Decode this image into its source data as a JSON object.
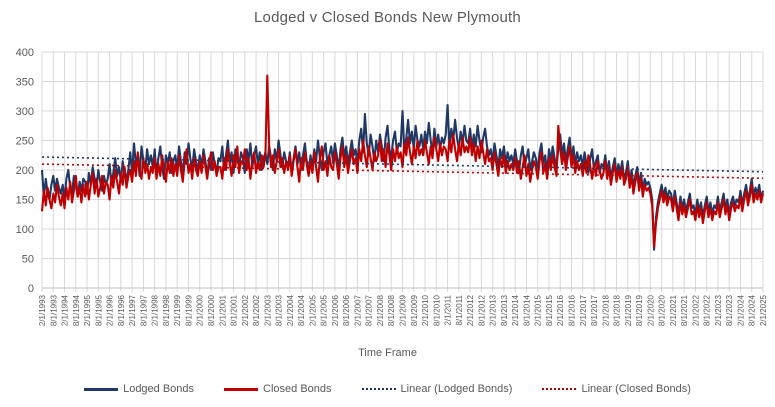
{
  "chart_data": {
    "type": "line",
    "title": "Lodged v Closed Bonds New Plymouth",
    "xlabel": "Time Frame",
    "ylabel": "",
    "ylim": [
      0,
      400
    ],
    "y_ticks": [
      0,
      50,
      100,
      150,
      200,
      250,
      300,
      350,
      400
    ],
    "grid": true,
    "legend_position": "bottom",
    "x_frequency": "monthly",
    "x_range": [
      "2/1/1993",
      "2/1/2025"
    ],
    "x_tick_labels": [
      "2/1/1993",
      "8/1/1993",
      "2/1/1994",
      "8/1/1994",
      "2/1/1995",
      "8/1/1995",
      "2/1/1996",
      "8/1/1996",
      "2/1/1997",
      "8/1/1997",
      "2/1/1998",
      "8/1/1998",
      "2/1/1999",
      "8/1/1999",
      "2/1/2000",
      "8/1/2000",
      "2/1/2001",
      "8/1/2001",
      "2/1/2002",
      "8/1/2002",
      "2/1/2003",
      "8/1/2003",
      "2/1/2004",
      "8/1/2004",
      "2/1/2005",
      "8/1/2005",
      "2/1/2006",
      "8/1/2006",
      "2/1/2007",
      "8/1/2007",
      "2/1/2008",
      "8/1/2008",
      "2/1/2009",
      "8/1/2009",
      "2/1/2010",
      "8/1/2010",
      "2/1/2011",
      "8/1/2011",
      "2/1/2012",
      "8/1/2012",
      "2/1/2013",
      "8/1/2013",
      "2/1/2014",
      "8/1/2014",
      "2/1/2015",
      "8/1/2015",
      "2/1/2016",
      "8/1/2016",
      "2/1/2017",
      "8/1/2017",
      "2/1/2018",
      "8/1/2018",
      "2/1/2019",
      "8/1/2019",
      "2/1/2020",
      "8/1/2020",
      "2/1/2021",
      "8/1/2021",
      "2/1/2022",
      "8/1/2022",
      "2/1/2023",
      "8/1/2023",
      "2/1/2024",
      "8/1/2024",
      "2/1/2025"
    ],
    "legend": [
      {
        "label": "Lodged Bonds",
        "color": "#1F3864",
        "style": "solid"
      },
      {
        "label": "Closed Bonds",
        "color": "#C00000",
        "style": "solid"
      },
      {
        "label": "Linear (Lodged Bonds)",
        "color": "#1F3864",
        "style": "dotted"
      },
      {
        "label": "Linear (Closed Bonds)",
        "color": "#C00000",
        "style": "dotted"
      }
    ],
    "series": [
      {
        "name": "Lodged Bonds",
        "color": "#1F3864",
        "values": [
          200,
          155,
          185,
          160,
          150,
          175,
          190,
          165,
          185,
          170,
          160,
          175,
          150,
          185,
          200,
          170,
          160,
          190,
          175,
          155,
          180,
          165,
          185,
          180,
          160,
          195,
          175,
          205,
          185,
          170,
          200,
          180,
          165,
          190,
          175,
          185,
          210,
          175,
          195,
          220,
          190,
          205,
          180,
          215,
          195,
          185,
          200,
          230,
          195,
          245,
          210,
          225,
          190,
          240,
          215,
          200,
          235,
          210,
          225,
          205,
          235,
          190,
          220,
          240,
          205,
          185,
          225,
          210,
          230,
          195,
          215,
          225,
          200,
          240,
          215,
          195,
          230,
          210,
          245,
          220,
          200,
          235,
          215,
          195,
          225,
          205,
          235,
          215,
          190,
          220,
          200,
          230,
          210,
          195,
          220,
          215,
          240,
          200,
          225,
          250,
          210,
          230,
          195,
          235,
          220,
          205,
          230,
          220,
          195,
          235,
          215,
          245,
          205,
          225,
          240,
          210,
          230,
          200,
          220,
          230,
          210,
          240,
          220,
          200,
          235,
          215,
          250,
          225,
          205,
          230,
          215,
          205,
          230,
          195,
          220,
          240,
          210,
          230,
          200,
          225,
          245,
          215,
          195,
          225,
          205,
          235,
          215,
          250,
          220,
          200,
          230,
          245,
          210,
          225,
          240,
          215,
          245,
          225,
          200,
          235,
          255,
          220,
          240,
          210,
          230,
          250,
          225,
          235,
          210,
          250,
          270,
          230,
          295,
          245,
          225,
          260,
          240,
          215,
          250,
          230,
          260,
          240,
          215,
          255,
          275,
          235,
          220,
          250,
          265,
          230,
          245,
          240,
          300,
          230,
          255,
          285,
          245,
          265,
          235,
          275,
          250,
          240,
          260,
          235,
          265,
          245,
          280,
          250,
          230,
          270,
          240,
          260,
          235,
          255,
          245,
          260,
          310,
          240,
          270,
          250,
          285,
          255,
          235,
          265,
          245,
          275,
          250,
          245,
          270,
          235,
          260,
          240,
          275,
          250,
          230,
          255,
          270,
          240,
          225,
          235,
          215,
          245,
          225,
          205,
          235,
          220,
          240,
          210,
          230,
          215,
          225,
          210,
          235,
          215,
          195,
          225,
          240,
          205,
          220,
          235,
          200,
          215,
          230,
          220,
          200,
          230,
          245,
          210,
          225,
          195,
          235,
          215,
          240,
          220,
          205,
          235,
          260,
          225,
          245,
          215,
          235,
          255,
          220,
          240,
          210,
          230,
          215,
          225,
          205,
          230,
          210,
          195,
          220,
          235,
          200,
          215,
          225,
          195,
          210,
          205,
          225,
          195,
          215,
          185,
          205,
          220,
          190,
          210,
          195,
          215,
          185,
          195,
          215,
          180,
          200,
          170,
          190,
          205,
          175,
          195,
          165,
          185,
          175,
          180,
          170,
          150,
          65,
          120,
          145,
          160,
          175,
          155,
          170,
          150,
          165,
          160,
          140,
          165,
          145,
          125,
          155,
          135,
          150,
          130,
          145,
          160,
          135,
          140,
          125,
          150,
          130,
          145,
          120,
          140,
          155,
          130,
          145,
          125,
          140,
          135,
          155,
          130,
          145,
          160,
          135,
          150,
          125,
          145,
          155,
          140,
          150,
          145,
          165,
          140,
          160,
          175,
          150,
          165,
          185,
          155,
          170,
          160,
          175,
          150,
          165
        ]
      },
      {
        "name": "Closed Bonds",
        "color": "#C00000",
        "values": [
          130,
          165,
          140,
          170,
          150,
          135,
          160,
          145,
          175,
          155,
          140,
          160,
          135,
          170,
          150,
          180,
          145,
          165,
          190,
          155,
          170,
          145,
          175,
          155,
          180,
          150,
          175,
          195,
          160,
          185,
          155,
          170,
          190,
          160,
          180,
          175,
          150,
          190,
          170,
          200,
          180,
          160,
          195,
          175,
          205,
          170,
          190,
          200,
          180,
          215,
          190,
          230,
          200,
          185,
          220,
          195,
          210,
          185,
          205,
          195,
          220,
          185,
          210,
          190,
          225,
          200,
          180,
          215,
          195,
          220,
          190,
          210,
          190,
          225,
          200,
          180,
          215,
          235,
          195,
          210,
          185,
          220,
          200,
          190,
          215,
          195,
          225,
          205,
          185,
          210,
          230,
          200,
          215,
          190,
          205,
          205,
          185,
          220,
          200,
          235,
          210,
          190,
          225,
          205,
          240,
          195,
          215,
          210,
          235,
          200,
          220,
          185,
          215,
          230,
          195,
          215,
          200,
          225,
          205,
          225,
          360,
          240,
          205,
          225,
          195,
          215,
          235,
          205,
          220,
          195,
          215,
          200,
          225,
          190,
          215,
          235,
          205,
          180,
          220,
          200,
          230,
          210,
          190,
          215,
          195,
          230,
          205,
          180,
          220,
          240,
          200,
          215,
          190,
          225,
          205,
          200,
          230,
          210,
          185,
          220,
          240,
          205,
          225,
          195,
          215,
          235,
          210,
          220,
          195,
          235,
          215,
          250,
          225,
          205,
          240,
          220,
          200,
          230,
          215,
          225,
          250,
          215,
          235,
          205,
          245,
          225,
          200,
          235,
          215,
          240,
          220,
          230,
          205,
          245,
          225,
          255,
          230,
          210,
          240,
          220,
          250,
          225,
          235,
          225,
          250,
          230,
          210,
          240,
          220,
          255,
          235,
          215,
          245,
          225,
          240,
          235,
          215,
          250,
          230,
          260,
          235,
          215,
          245,
          225,
          255,
          230,
          240,
          230,
          255,
          225,
          245,
          215,
          240,
          220,
          250,
          230,
          210,
          235,
          215,
          220,
          200,
          230,
          210,
          190,
          220,
          205,
          225,
          195,
          215,
          200,
          210,
          200,
          220,
          195,
          215,
          185,
          205,
          225,
          190,
          210,
          180,
          200,
          215,
          205,
          185,
          215,
          230,
          195,
          210,
          185,
          220,
          200,
          225,
          205,
          190,
          275,
          235,
          210,
          230,
          200,
          220,
          240,
          205,
          225,
          195,
          215,
          200,
          210,
          190,
          215,
          195,
          225,
          205,
          185,
          210,
          190,
          215,
          200,
          185,
          195,
          215,
          185,
          205,
          175,
          195,
          210,
          180,
          200,
          185,
          205,
          175,
          185,
          205,
          170,
          190,
          160,
          180,
          195,
          165,
          185,
          155,
          175,
          165,
          170,
          160,
          140,
          70,
          110,
          135,
          150,
          165,
          145,
          160,
          140,
          155,
          150,
          130,
          155,
          135,
          115,
          145,
          125,
          140,
          120,
          135,
          150,
          125,
          130,
          115,
          140,
          120,
          135,
          110,
          130,
          145,
          120,
          135,
          115,
          130,
          125,
          145,
          120,
          135,
          150,
          125,
          140,
          115,
          135,
          145,
          130,
          140,
          135,
          155,
          130,
          150,
          165,
          140,
          155,
          175,
          145,
          160,
          150,
          165,
          145,
          160
        ]
      }
    ],
    "trendlines": [
      {
        "name": "Linear (Lodged Bonds)",
        "color": "#1F3864",
        "start_value": 222,
        "end_value": 197
      },
      {
        "name": "Linear (Closed Bonds)",
        "color": "#C00000",
        "start_value": 210,
        "end_value": 186
      }
    ]
  },
  "colors": {
    "title_text": "#595959",
    "axis_text": "#595959",
    "gridline": "#D9D9D9",
    "axis_line": "#BFBFBF",
    "background": "#FFFFFF"
  }
}
